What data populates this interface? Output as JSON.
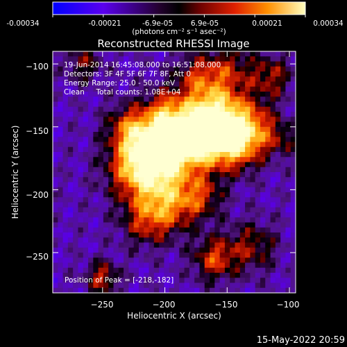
{
  "colorbar": {
    "tick_labels": [
      "-0.00034",
      "-0.00021",
      "-6.9e-05",
      "6.9e-05",
      "0.00021",
      "0.00034"
    ],
    "range": [
      -0.00034,
      0.00034
    ],
    "unit_label": "(photons cm⁻² s⁻¹ asec⁻²)",
    "colormap": [
      "#0000ff",
      "#7a00d8",
      "#000000",
      "#8b0000",
      "#ff4000",
      "#ffb000",
      "#ffffb0"
    ]
  },
  "chart_data": {
    "type": "heatmap",
    "title": "Reconstructed RHESSI Image",
    "xlabel": "Heliocentric X (arcsec)",
    "ylabel": "Heliocentric Y (arcsec)",
    "xlim": [
      -290,
      -95
    ],
    "ylim": [
      -282,
      -90
    ],
    "x_ticks": [
      -250,
      -200,
      -150,
      -100
    ],
    "y_ticks": [
      -100,
      -150,
      -200,
      -250
    ],
    "x_tick_labels": [
      "−250",
      "−200",
      "−150",
      "−100"
    ],
    "y_tick_labels": [
      "−100",
      "−150",
      "−200",
      "−250"
    ],
    "peak_position": [
      -218,
      -182
    ],
    "annotations": [
      "19-Jun-2014 16:45:08.000 to 16:51:08.000",
      "Detectors: 3F 4F 5F 6F 7F 8F, Att 0",
      "Energy Range: 25.0 - 50.0 keV",
      "Clean     Total counts: 1.08E+04",
      "Position of Peak = [-218,-182]"
    ],
    "date_stamp": "15-May-2022 20:59"
  }
}
